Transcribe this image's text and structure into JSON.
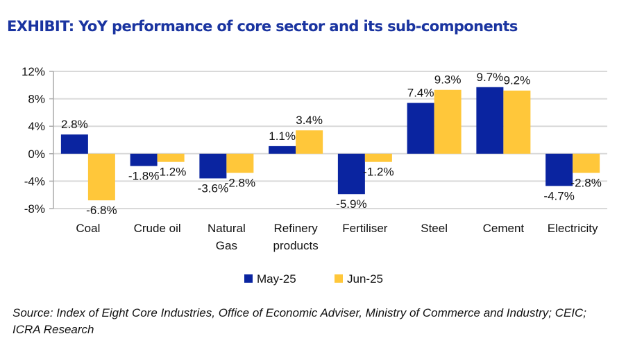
{
  "title": "EXHIBIT: YoY performance of core sector and its sub-components",
  "source": "Source: Index of Eight Core Industries, Office of Economic Adviser, Ministry of Commerce and Industry; CEIC; ICRA Research",
  "chart_data": {
    "type": "bar",
    "title": "EXHIBIT: YoY performance of core sector and its sub-components",
    "xlabel": "",
    "ylabel": "",
    "categories": [
      [
        "Coal"
      ],
      [
        "Crude oil"
      ],
      [
        "Natural",
        "Gas"
      ],
      [
        "Refinery",
        "products"
      ],
      [
        "Fertiliser"
      ],
      [
        "Steel"
      ],
      [
        "Cement"
      ],
      [
        "Electricity"
      ]
    ],
    "series": [
      {
        "name": "May-25",
        "color": "#0a24a0",
        "values": [
          2.8,
          -1.8,
          -3.6,
          1.1,
          -5.9,
          7.4,
          9.7,
          -4.7
        ]
      },
      {
        "name": "Jun-25",
        "color": "#ffc73a",
        "values": [
          -6.8,
          -1.2,
          -2.8,
          3.4,
          -1.2,
          9.3,
          9.2,
          -2.8
        ]
      }
    ],
    "ylim": [
      -8,
      12
    ],
    "yticks": [
      -8,
      -4,
      0,
      4,
      8,
      12
    ],
    "ytick_labels": [
      "-8%",
      "-4%",
      "0%",
      "4%",
      "8%",
      "12%"
    ],
    "grid": true,
    "legend": "bottom-center"
  }
}
